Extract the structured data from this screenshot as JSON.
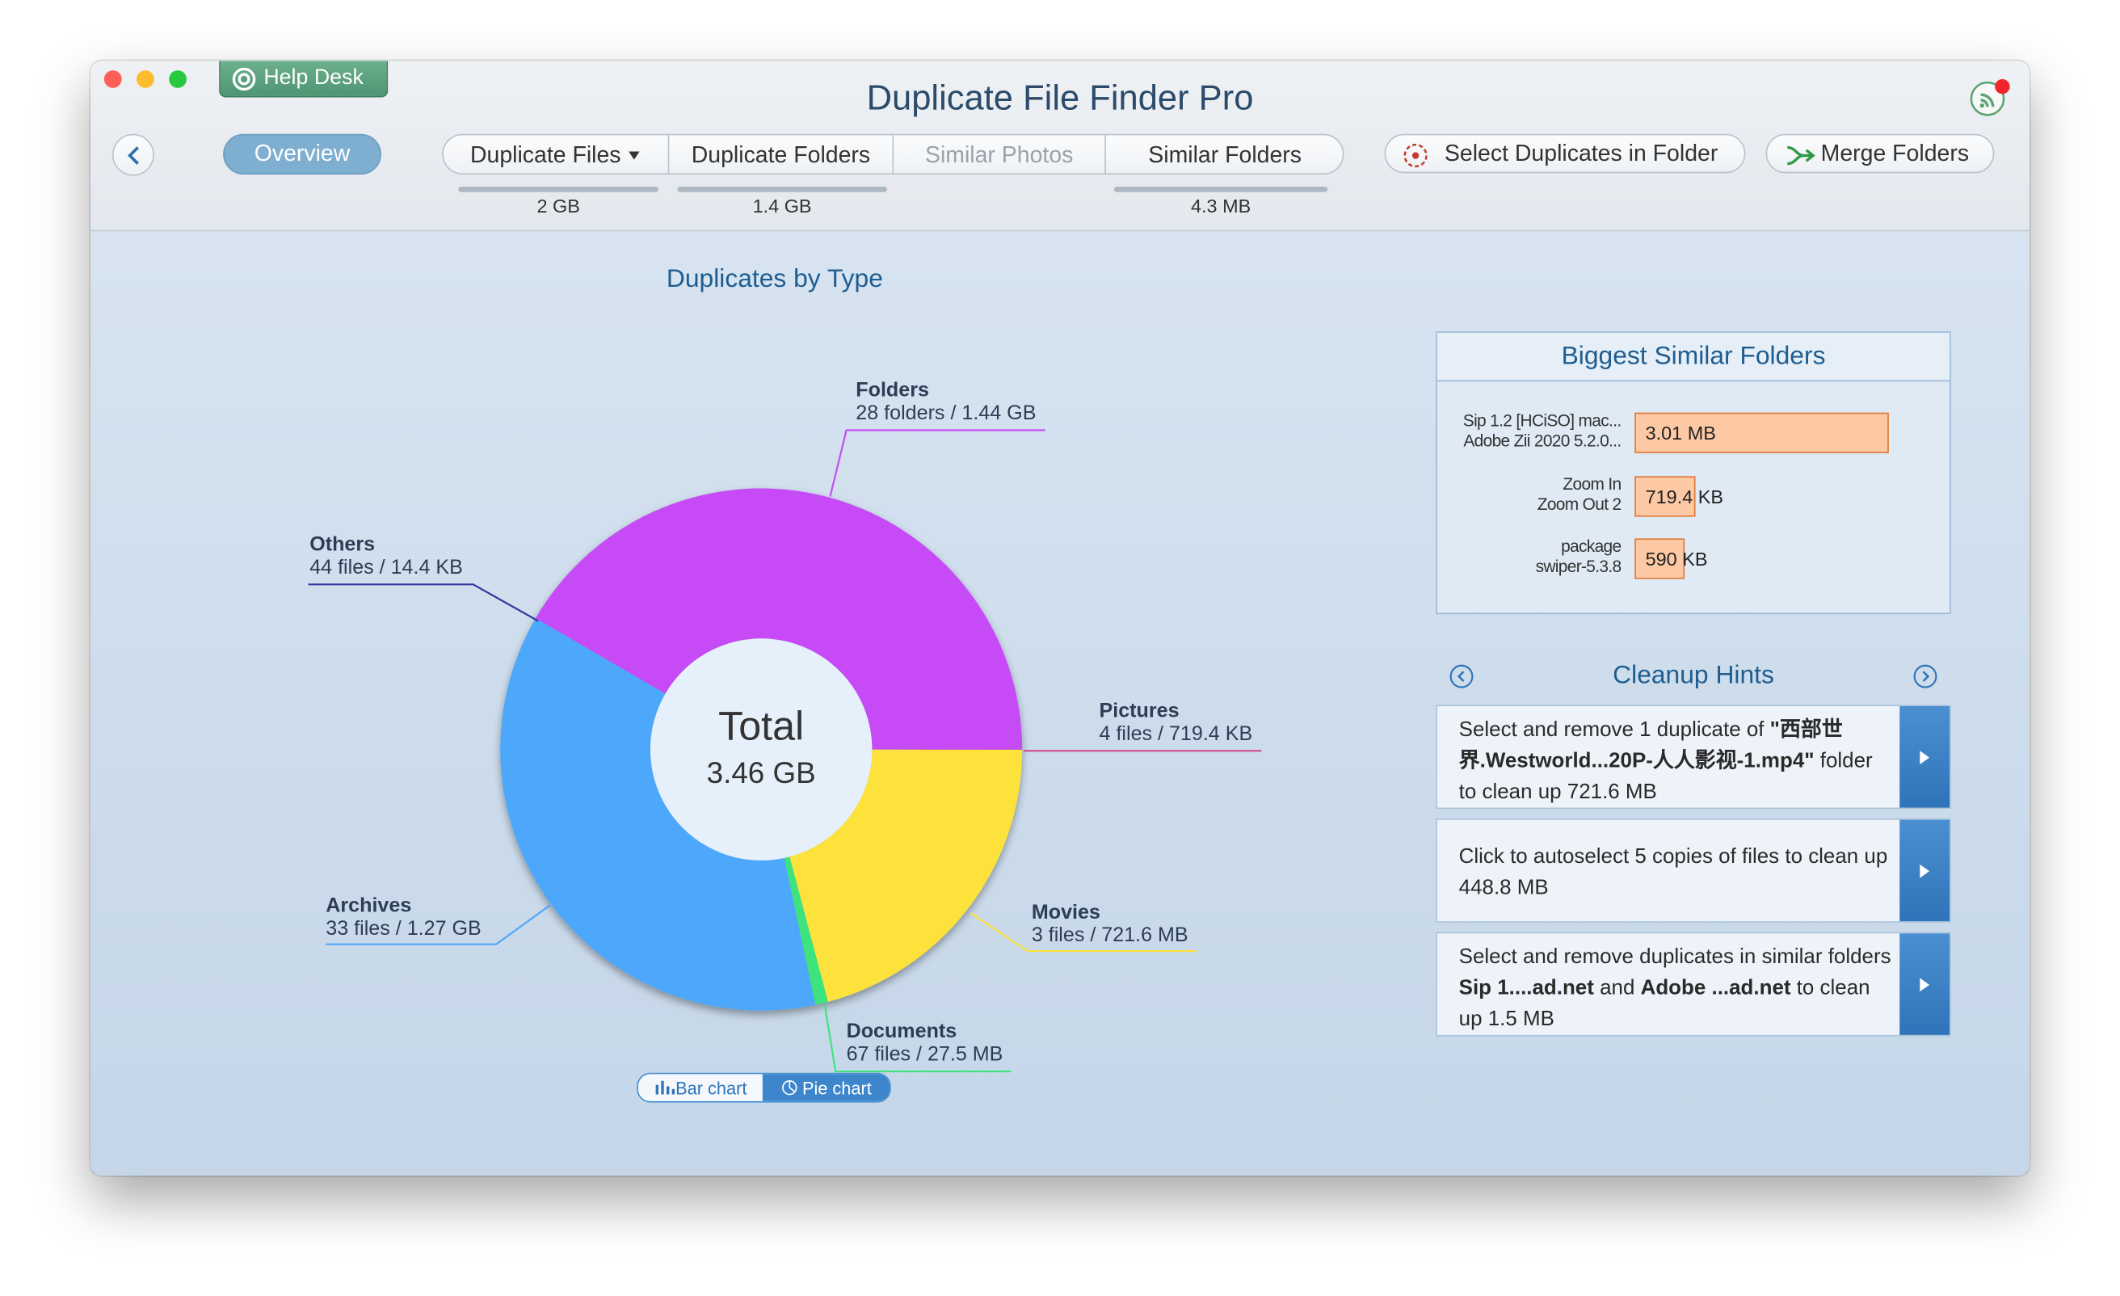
{
  "window": {
    "help_desk": "Help Desk",
    "title": "Duplicate File Finder Pro"
  },
  "toolbar": {
    "overview": "Overview",
    "tabs": [
      {
        "label": "Duplicate Files",
        "size": "2 GB"
      },
      {
        "label": "Duplicate Folders",
        "size": "1.4 GB"
      },
      {
        "label": "Similar Photos"
      },
      {
        "label": "Similar Folders",
        "size": "4.3 MB"
      }
    ],
    "select_duplicates": "Select Duplicates in Folder",
    "merge_folders": "Merge Folders"
  },
  "chart_data": {
    "type": "pie",
    "title": "Duplicates by Type",
    "center_label": "Total",
    "center_value_label": "3.46 GB",
    "categories": [
      "Folders",
      "Pictures",
      "Movies",
      "Documents",
      "Archives",
      "Others"
    ],
    "values": [
      1.44,
      0.0007194,
      0.7216,
      0.0275,
      1.27,
      1.44e-05
    ],
    "value_labels": [
      "28 folders / 1.44 GB",
      "4 files / 719.4 KB",
      "3 files / 721.6 MB",
      "67 files / 27.5 MB",
      "33 files / 1.27 GB",
      "44 files / 14.4 KB"
    ],
    "colors": [
      "#c64bf7",
      "#d0508e",
      "#fde23b",
      "#3ee37c",
      "#4ea7fb",
      "#34349c"
    ]
  },
  "view_toggle": {
    "bar": "Bar chart",
    "pie": "Pie chart"
  },
  "similar_folders": {
    "title": "Biggest Similar Folders",
    "rows": [
      {
        "names": [
          "Sip 1.2 [HCiSO] mac...",
          "Adobe Zii 2020 5.2.0..."
        ],
        "value": 3.01,
        "value_label": "3.01 MB"
      },
      {
        "names": [
          "Zoom In",
          "Zoom Out 2"
        ],
        "value": 0.7194,
        "value_label": "719.4 KB"
      },
      {
        "names": [
          "package",
          "swiper-5.3.8"
        ],
        "value": 0.59,
        "value_label": "590 KB"
      }
    ]
  },
  "hints": {
    "title": "Cleanup Hints",
    "items": [
      {
        "parts": [
          "Select and remove 1 duplicate of ",
          "\"西部世界.Westworld...20P-人人影视-1.mp4\"",
          " folder to clean up 721.6 MB"
        ]
      },
      {
        "parts": [
          "Click to autoselect 5 copies of files to clean up 448.8 MB"
        ]
      },
      {
        "parts": [
          "Select and remove duplicates in similar folders ",
          "Sip 1....ad.net",
          " and ",
          "Adobe ...ad.net",
          " to clean up 1.5 MB"
        ]
      }
    ]
  }
}
